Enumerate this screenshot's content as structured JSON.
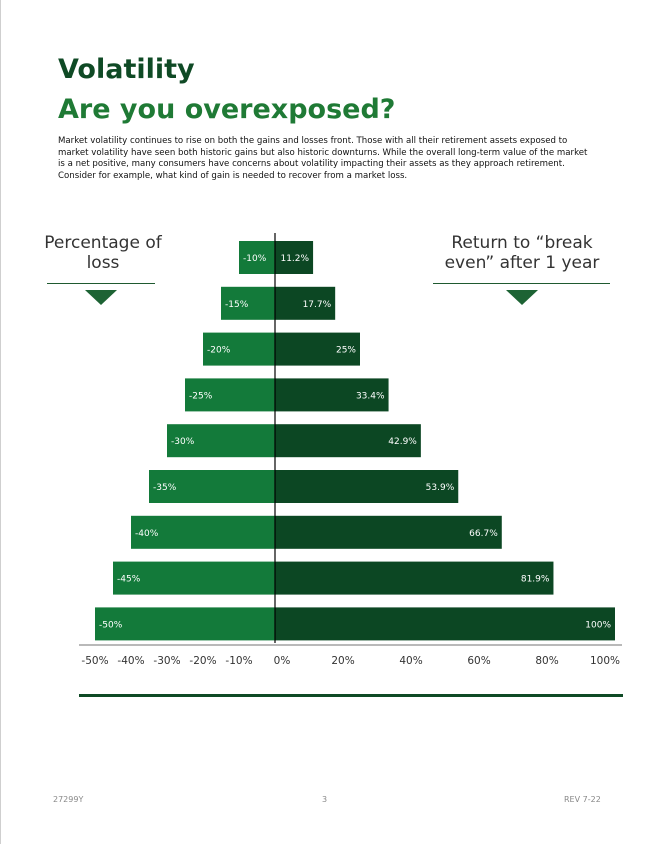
{
  "page": {
    "title": "Volatility",
    "subtitle": "Are you overexposed?",
    "intro": "Market volatility continues to rise on both the gains and losses front. Those with all their retirement assets exposed to market volatility have seen both historic gains but also historic downturns. While the overall long-term value of the market is a net positive, many consumers have concerns about volatility impacting their assets as they approach retirement. Consider for example, what kind of gain is needed to recover from a market loss."
  },
  "headings": {
    "left": "Percentage of loss",
    "right": "Return to “break even” after 1 year"
  },
  "colors": {
    "loss_bar": "#137a3a",
    "gain_bar": "#0c4723",
    "rule": "#0f4a25",
    "title": "#0f4a25",
    "subtitle": "#1f7a35"
  },
  "chart_data": {
    "type": "bar",
    "orientation": "horizontal-diverging",
    "categories": [
      "-10%",
      "-15%",
      "-20%",
      "-25%",
      "-30%",
      "-35%",
      "-40%",
      "-45%",
      "-50%"
    ],
    "series": [
      {
        "values": [
          -10,
          -15,
          -20,
          -25,
          -30,
          -35,
          -40,
          -45,
          -50
        ],
        "labels": [
          "-10%",
          "-15%",
          "-20%",
          "-25%",
          "-30%",
          "-35%",
          "-40%",
          "-45%",
          "-50%"
        ]
      },
      {
        "values": [
          11.2,
          17.7,
          25,
          33.4,
          42.9,
          53.9,
          66.7,
          81.9,
          100
        ],
        "labels": [
          "11.2%",
          "17.7%",
          "25%",
          "33.4%",
          "42.9%",
          "53.9%",
          "66.7%",
          "81.9%",
          "100%"
        ]
      }
    ],
    "left_range": [
      -50,
      0
    ],
    "right_range": [
      0,
      100
    ],
    "left_ticks": [
      "-50%",
      "-40%",
      "-30%",
      "-20%",
      "-10%",
      "0%"
    ],
    "right_ticks": [
      "20%",
      "40%",
      "60%",
      "80%",
      "100%"
    ],
    "grid": false
  },
  "footer": {
    "code": "27299Y",
    "page_number": "3",
    "revision": "REV 7-22"
  }
}
